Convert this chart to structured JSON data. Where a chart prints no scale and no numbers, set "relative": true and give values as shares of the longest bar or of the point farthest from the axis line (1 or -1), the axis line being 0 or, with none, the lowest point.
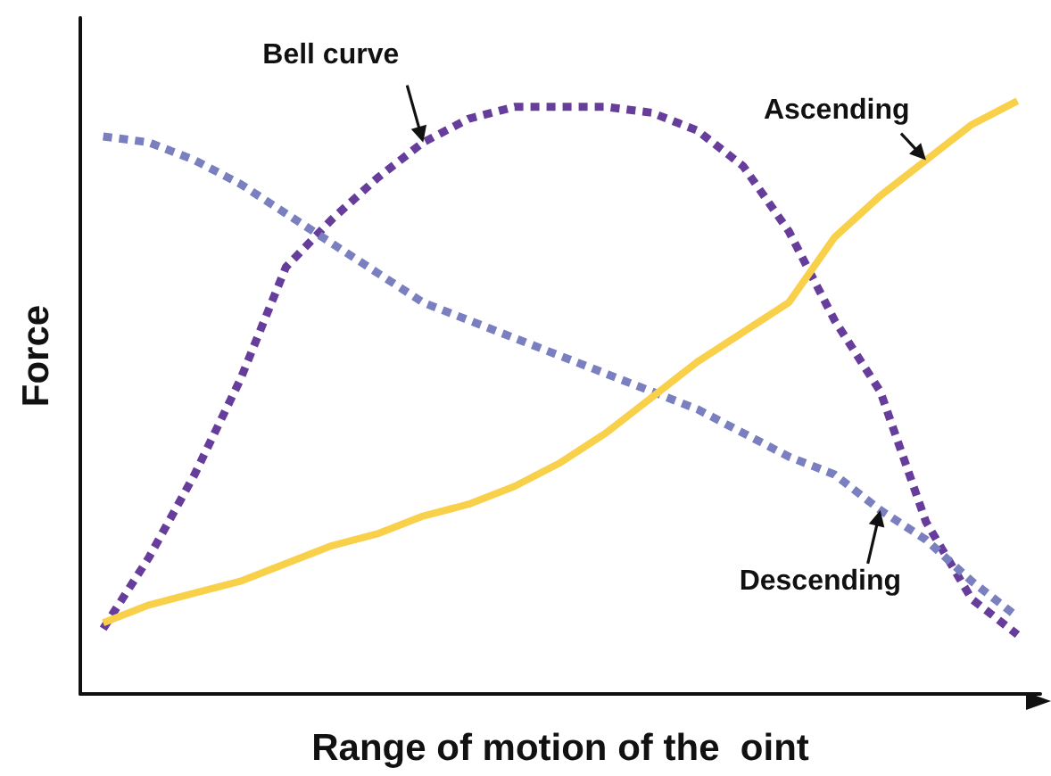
{
  "chart_data": {
    "type": "line",
    "relative": true,
    "xlabel": "Range of motion of the  oint",
    "ylabel": "Force",
    "categories": [
      null,
      null,
      null,
      null,
      null,
      null,
      null,
      null,
      null,
      null,
      null,
      null,
      null,
      null,
      null,
      null,
      null,
      null,
      null,
      null,
      null
    ],
    "series": [
      {
        "name": "Bell curve",
        "color": "#673d9c",
        "line_style": "dotted",
        "values": [
          0.11,
          0.23,
          0.37,
          0.53,
          0.72,
          0.8,
          0.87,
          0.93,
          0.97,
          0.99,
          0.99,
          0.99,
          0.98,
          0.95,
          0.89,
          0.78,
          0.63,
          0.51,
          0.29,
          0.16,
          0.1
        ]
      },
      {
        "name": "Descending",
        "color": "#7a7fc0",
        "line_style": "dotted",
        "values": [
          0.94,
          0.93,
          0.9,
          0.86,
          0.81,
          0.76,
          0.71,
          0.66,
          0.63,
          0.6,
          0.57,
          0.54,
          0.51,
          0.48,
          0.44,
          0.4,
          0.37,
          0.31,
          0.26,
          0.19,
          0.13
        ]
      },
      {
        "name": "Ascending",
        "color": "#f8d04a",
        "line_style": "solid",
        "values": [
          0.12,
          0.15,
          0.17,
          0.19,
          0.22,
          0.25,
          0.27,
          0.3,
          0.32,
          0.35,
          0.39,
          0.44,
          0.5,
          0.56,
          0.61,
          0.66,
          0.77,
          0.84,
          0.9,
          0.96,
          1
        ]
      }
    ],
    "legend": false,
    "grid": false,
    "marker": "none"
  }
}
